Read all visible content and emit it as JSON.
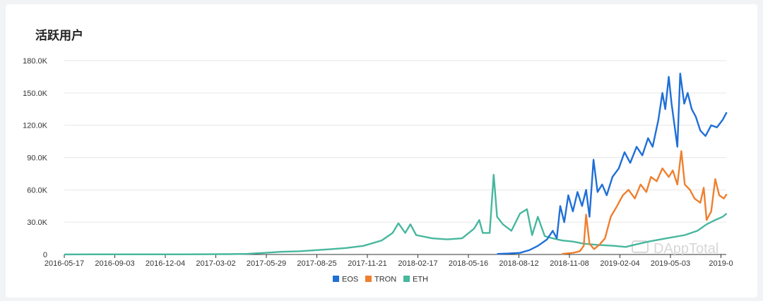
{
  "chart_data": {
    "type": "line",
    "title": "活跃用户",
    "xlabel": "",
    "ylabel": "",
    "x_ticks": [
      "2016-05-17",
      "2016-09-03",
      "2016-12-04",
      "2017-03-02",
      "2017-05-29",
      "2017-08-25",
      "2017-11-21",
      "2018-02-17",
      "2018-05-16",
      "2018-08-12",
      "2018-11-08",
      "2019-02-04",
      "2019-05-03",
      "2019-0"
    ],
    "y_ticks": [
      "0",
      "30.0K",
      "60.0K",
      "90.0K",
      "120.0K",
      "150.0K",
      "180.0K"
    ],
    "ylim": [
      0,
      180000
    ],
    "grid": "horizontal",
    "legend_position": "bottom",
    "watermark": "DAppTotal",
    "series": [
      {
        "name": "EOS",
        "color": "#1f6fd8",
        "points": [
          [
            "2018-06-10",
            500
          ],
          [
            "2018-07-01",
            900
          ],
          [
            "2018-07-20",
            1500
          ],
          [
            "2018-08-05",
            4000
          ],
          [
            "2018-08-20",
            8000
          ],
          [
            "2018-09-05",
            14000
          ],
          [
            "2018-09-15",
            22000
          ],
          [
            "2018-09-22",
            15000
          ],
          [
            "2018-09-28",
            45000
          ],
          [
            "2018-10-05",
            30000
          ],
          [
            "2018-10-12",
            55000
          ],
          [
            "2018-10-20",
            40000
          ],
          [
            "2018-10-28",
            58000
          ],
          [
            "2018-11-05",
            45000
          ],
          [
            "2018-11-12",
            60000
          ],
          [
            "2018-11-18",
            35000
          ],
          [
            "2018-11-25",
            88000
          ],
          [
            "2018-12-02",
            58000
          ],
          [
            "2018-12-10",
            65000
          ],
          [
            "2018-12-18",
            55000
          ],
          [
            "2018-12-28",
            72000
          ],
          [
            "2019-01-08",
            80000
          ],
          [
            "2019-01-18",
            95000
          ],
          [
            "2019-01-28",
            85000
          ],
          [
            "2019-02-08",
            100000
          ],
          [
            "2019-02-18",
            92000
          ],
          [
            "2019-02-28",
            108000
          ],
          [
            "2019-03-08",
            100000
          ],
          [
            "2019-03-18",
            125000
          ],
          [
            "2019-03-25",
            150000
          ],
          [
            "2019-03-30",
            135000
          ],
          [
            "2019-04-05",
            165000
          ],
          [
            "2019-04-10",
            140000
          ],
          [
            "2019-04-15",
            120000
          ],
          [
            "2019-04-20",
            100000
          ],
          [
            "2019-04-25",
            168000
          ],
          [
            "2019-05-02",
            140000
          ],
          [
            "2019-05-08",
            150000
          ],
          [
            "2019-05-15",
            135000
          ],
          [
            "2019-05-22",
            128000
          ],
          [
            "2019-05-30",
            115000
          ],
          [
            "2019-06-08",
            110000
          ],
          [
            "2019-06-18",
            120000
          ],
          [
            "2019-06-28",
            118000
          ],
          [
            "2019-07-08",
            125000
          ],
          [
            "2019-07-15",
            132000
          ]
        ]
      },
      {
        "name": "TRON",
        "color": "#ef7f2e",
        "points": [
          [
            "2018-10-01",
            500
          ],
          [
            "2018-10-20",
            1500
          ],
          [
            "2018-11-01",
            3000
          ],
          [
            "2018-11-08",
            8000
          ],
          [
            "2018-11-12",
            37000
          ],
          [
            "2018-11-18",
            10000
          ],
          [
            "2018-11-26",
            5000
          ],
          [
            "2018-12-05",
            9000
          ],
          [
            "2018-12-15",
            15000
          ],
          [
            "2018-12-25",
            35000
          ],
          [
            "2019-01-05",
            45000
          ],
          [
            "2019-01-15",
            55000
          ],
          [
            "2019-01-25",
            60000
          ],
          [
            "2019-02-05",
            52000
          ],
          [
            "2019-02-15",
            65000
          ],
          [
            "2019-02-25",
            58000
          ],
          [
            "2019-03-05",
            72000
          ],
          [
            "2019-03-15",
            68000
          ],
          [
            "2019-03-25",
            80000
          ],
          [
            "2019-04-05",
            72000
          ],
          [
            "2019-04-12",
            78000
          ],
          [
            "2019-04-20",
            65000
          ],
          [
            "2019-04-27",
            96000
          ],
          [
            "2019-05-03",
            65000
          ],
          [
            "2019-05-12",
            60000
          ],
          [
            "2019-05-20",
            52000
          ],
          [
            "2019-05-30",
            48000
          ],
          [
            "2019-06-05",
            62000
          ],
          [
            "2019-06-10",
            32000
          ],
          [
            "2019-06-18",
            40000
          ],
          [
            "2019-06-25",
            70000
          ],
          [
            "2019-07-02",
            55000
          ],
          [
            "2019-07-10",
            52000
          ],
          [
            "2019-07-15",
            56000
          ]
        ]
      },
      {
        "name": "ETH",
        "color": "#47b79e",
        "points": [
          [
            "2016-05-17",
            50
          ],
          [
            "2016-09-03",
            100
          ],
          [
            "2016-12-04",
            150
          ],
          [
            "2017-03-02",
            300
          ],
          [
            "2017-04-01",
            600
          ],
          [
            "2017-05-01",
            1500
          ],
          [
            "2017-05-29",
            2500
          ],
          [
            "2017-07-01",
            3000
          ],
          [
            "2017-08-25",
            5000
          ],
          [
            "2017-09-20",
            6000
          ],
          [
            "2017-10-20",
            8000
          ],
          [
            "2017-11-21",
            13000
          ],
          [
            "2017-12-10",
            20000
          ],
          [
            "2017-12-20",
            29000
          ],
          [
            "2018-01-01",
            20000
          ],
          [
            "2018-01-10",
            28000
          ],
          [
            "2018-01-20",
            18000
          ],
          [
            "2018-02-17",
            15000
          ],
          [
            "2018-03-15",
            14000
          ],
          [
            "2018-04-10",
            15000
          ],
          [
            "2018-05-01",
            24000
          ],
          [
            "2018-05-10",
            32000
          ],
          [
            "2018-05-16",
            20000
          ],
          [
            "2018-05-28",
            20000
          ],
          [
            "2018-06-04",
            74000
          ],
          [
            "2018-06-10",
            35000
          ],
          [
            "2018-06-20",
            28000
          ],
          [
            "2018-07-05",
            22000
          ],
          [
            "2018-07-20",
            38000
          ],
          [
            "2018-08-01",
            42000
          ],
          [
            "2018-08-10",
            18000
          ],
          [
            "2018-08-20",
            35000
          ],
          [
            "2018-09-01",
            17000
          ],
          [
            "2018-09-15",
            15000
          ],
          [
            "2018-10-01",
            13000
          ],
          [
            "2018-10-20",
            12000
          ],
          [
            "2018-11-08",
            10000
          ],
          [
            "2018-12-01",
            9000
          ],
          [
            "2019-01-01",
            8000
          ],
          [
            "2019-01-20",
            7000
          ],
          [
            "2019-02-04",
            9000
          ],
          [
            "2019-03-01",
            12000
          ],
          [
            "2019-04-01",
            15000
          ],
          [
            "2019-05-03",
            18000
          ],
          [
            "2019-05-25",
            22000
          ],
          [
            "2019-06-10",
            28000
          ],
          [
            "2019-06-25",
            32000
          ],
          [
            "2019-07-08",
            35000
          ],
          [
            "2019-07-15",
            38000
          ]
        ]
      }
    ]
  }
}
